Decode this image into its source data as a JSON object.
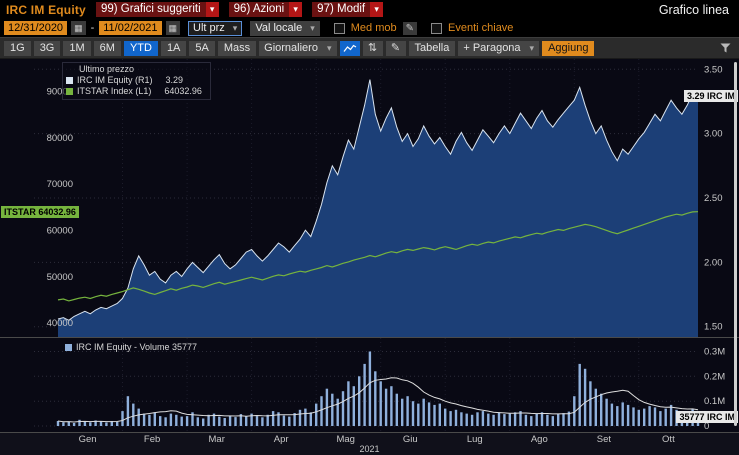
{
  "theme": {
    "amber": "#e08b1e",
    "menu_red": "#6a1212",
    "arrow_red": "#b41616",
    "active_blue": "#1166cc",
    "panel_bg": "#090914",
    "toolbar_bg": "#2b2b2b",
    "button_bg": "#454545",
    "tick_text": "#c8c8c8"
  },
  "icons": {
    "dropdown_arrow": "▾",
    "calendar": "▦",
    "pencil": "✎",
    "arrows_updown": "⇅"
  },
  "titlebar": {
    "security": "IRC IM Equity",
    "menus": [
      {
        "label": "99) Grafici suggeriti"
      },
      {
        "label": "96) Azioni"
      },
      {
        "label": "97) Modif"
      }
    ],
    "title": "Grafico linea"
  },
  "controls": {
    "date_from": "12/31/2020",
    "date_to": "11/02/2021",
    "date_separator": "-",
    "price_field": "Ult prz",
    "currency": "Val locale",
    "med_mob_label": "Med mob",
    "eventi_chiave_label": "Eventi chiave"
  },
  "toolbar": {
    "periods": [
      {
        "label": "1G",
        "active": false
      },
      {
        "label": "3G",
        "active": false
      },
      {
        "label": "1M",
        "active": false
      },
      {
        "label": "6M",
        "active": false
      },
      {
        "label": "YTD",
        "active": true
      },
      {
        "label": "1A",
        "active": false
      },
      {
        "label": "5A",
        "active": false
      },
      {
        "label": "Mass",
        "active": false
      }
    ],
    "frequency": "Giornaliero",
    "table_label": "Tabella",
    "compare_label": "+ Paragona",
    "add_label": "Aggiung"
  },
  "chart": {
    "legend_title": "Ultimo prezzo",
    "series1_label": "IRC IM Equity  (R1)",
    "series1_value": "3.29",
    "series2_label": "ITSTAR Index  (L1)",
    "series2_value": "64032.96",
    "left_axis_ticks": [
      "90000",
      "80000",
      "70000",
      "60000",
      "50000",
      "40000"
    ],
    "right_axis_ticks": [
      "3.50",
      "3.00",
      "2.50",
      "2.00",
      "1.50"
    ],
    "left_badge": "ITSTAR 64032.96",
    "right_badge": "3.29 IRC IM",
    "colors": {
      "area_fill": "#1c3f77",
      "price_line": "#d9e4f0",
      "index_line": "#76b43e",
      "volume_bar": "#8fb0dc",
      "volume_ma": "#dddddd",
      "badge_left_bg": "#76b43e",
      "badge_right_bg": "#e8e8e8"
    }
  },
  "volume": {
    "legend": "IRC IM Equity - Volume 35777",
    "axis_ticks": [
      "0.3M",
      "0.2M",
      "0.1M",
      "0"
    ],
    "badge": "35777 IRC IM"
  },
  "xaxis": {
    "year": "2021"
  },
  "chart_data": {
    "type": "line",
    "title": "Grafico linea — IRC IM Equity vs ITSTAR Index, YTD 2021, daily",
    "months": [
      "Gen",
      "Feb",
      "Mar",
      "Apr",
      "Mag",
      "Giu",
      "Lug",
      "Ago",
      "Set",
      "Ott"
    ],
    "points_per_month": 12,
    "right_axis_range": [
      1.42,
      3.58
    ],
    "left_axis_range": [
      37000,
      97000
    ],
    "volume_axis_max": 330000,
    "right_ticks": [
      3.5,
      3.0,
      2.5,
      2.0,
      1.5
    ],
    "left_ticks": [
      90000,
      80000,
      70000,
      60000,
      50000,
      40000
    ],
    "volume_ticks": [
      300000,
      200000,
      100000,
      0
    ],
    "series": [
      {
        "name": "IRC IM Equity (R1)",
        "axis": "right",
        "last": 3.29,
        "values": [
          1.56,
          1.57,
          1.55,
          1.58,
          1.6,
          1.62,
          1.6,
          1.63,
          1.65,
          1.64,
          1.66,
          1.68,
          1.72,
          1.8,
          1.95,
          2.05,
          1.98,
          1.9,
          1.93,
          1.87,
          1.84,
          1.9,
          1.93,
          1.89,
          1.95,
          2.0,
          1.96,
          1.92,
          1.97,
          2.02,
          2.06,
          1.99,
          1.95,
          1.98,
          2.03,
          2.08,
          2.1,
          2.05,
          2.01,
          2.05,
          2.1,
          2.15,
          2.12,
          2.08,
          2.13,
          2.18,
          2.25,
          2.2,
          2.32,
          2.45,
          2.62,
          2.75,
          2.68,
          2.82,
          2.95,
          2.88,
          3.05,
          3.22,
          3.42,
          3.15,
          3.02,
          3.12,
          3.2,
          3.05,
          2.94,
          3.0,
          2.9,
          2.96,
          3.06,
          2.98,
          2.92,
          2.97,
          2.9,
          2.84,
          2.94,
          3.01,
          2.93,
          2.87,
          2.95,
          3.03,
          2.98,
          2.93,
          3.0,
          3.06,
          3.0,
          3.08,
          3.16,
          3.1,
          3.04,
          3.12,
          3.18,
          3.1,
          3.05,
          3.11,
          3.16,
          3.21,
          3.26,
          3.36,
          3.22,
          3.1,
          3.0,
          3.06,
          2.95,
          2.86,
          2.79,
          2.88,
          2.84,
          2.9,
          2.96,
          3.01,
          3.08,
          3.15,
          3.1,
          3.18,
          3.26,
          3.2,
          3.15,
          3.22,
          3.31,
          3.29
        ]
      },
      {
        "name": "ITSTAR Index (L1)",
        "axis": "left",
        "last": 64032.96,
        "values": [
          45000,
          45200,
          44800,
          45100,
          45400,
          45600,
          45300,
          45700,
          46000,
          45800,
          46200,
          46500,
          46800,
          47200,
          47600,
          47300,
          46900,
          46500,
          46200,
          46600,
          47000,
          47400,
          47100,
          47500,
          47800,
          48200,
          48000,
          47700,
          48100,
          48500,
          48800,
          48400,
          48700,
          49000,
          49300,
          49600,
          49900,
          49600,
          49300,
          49700,
          50100,
          50400,
          50200,
          50600,
          50900,
          51200,
          51000,
          51400,
          51700,
          52000,
          52400,
          52100,
          52500,
          52900,
          53200,
          53600,
          53900,
          54200,
          54600,
          54300,
          54700,
          55100,
          55400,
          55200,
          55600,
          55900,
          55700,
          56000,
          56300,
          56100,
          55800,
          56200,
          56500,
          56200,
          55900,
          56300,
          56700,
          57000,
          56800,
          57200,
          57500,
          57300,
          57700,
          58000,
          58300,
          58600,
          58400,
          58800,
          59100,
          59400,
          59200,
          59600,
          59900,
          60200,
          60000,
          60400,
          60700,
          61000,
          61300,
          61100,
          60800,
          60400,
          60000,
          59600,
          59300,
          59700,
          60100,
          60500,
          60900,
          61300,
          61700,
          62100,
          62500,
          62900,
          63200,
          63500,
          63300,
          63700,
          64000,
          64032.96
        ]
      },
      {
        "name": "IRC IM Equity - Volume",
        "axis": "volume",
        "last": 35777,
        "values": [
          20000,
          15000,
          18000,
          12000,
          25000,
          20000,
          15000,
          22000,
          18000,
          14000,
          20000,
          16000,
          60000,
          120000,
          90000,
          70000,
          50000,
          45000,
          55000,
          40000,
          35000,
          50000,
          45000,
          38000,
          40000,
          55000,
          35000,
          30000,
          45000,
          50000,
          38000,
          32000,
          42000,
          36000,
          48000,
          40000,
          50000,
          40000,
          35000,
          45000,
          60000,
          55000,
          42000,
          38000,
          52000,
          65000,
          70000,
          55000,
          90000,
          120000,
          150000,
          130000,
          110000,
          140000,
          180000,
          160000,
          200000,
          250000,
          300000,
          220000,
          180000,
          150000,
          160000,
          130000,
          110000,
          120000,
          100000,
          90000,
          110000,
          95000,
          85000,
          90000,
          70000,
          60000,
          65000,
          55000,
          50000,
          45000,
          55000,
          60000,
          50000,
          45000,
          55000,
          48000,
          50000,
          55000,
          60000,
          45000,
          40000,
          50000,
          55000,
          45000,
          40000,
          48000,
          52000,
          58000,
          120000,
          250000,
          230000,
          180000,
          150000,
          130000,
          110000,
          90000,
          80000,
          95000,
          85000,
          75000,
          65000,
          70000,
          80000,
          75000,
          60000,
          70000,
          85000,
          65000,
          55000,
          60000,
          70000,
          35777
        ]
      }
    ]
  }
}
